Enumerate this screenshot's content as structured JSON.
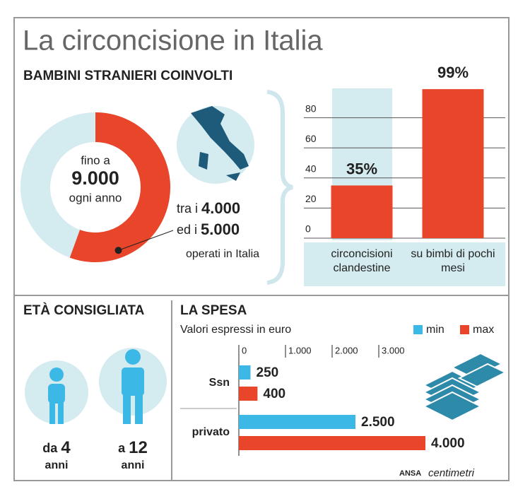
{
  "title": "La circoncisione in Italia",
  "chart_data": [
    {
      "type": "donut",
      "title": "BAMBINI STRANIERI COINVOLTI",
      "total": 9000,
      "total_label": "9.000",
      "total_prefix": "fino a",
      "total_suffix": "ogni anno",
      "range": [
        4000,
        5000
      ],
      "range_labels": [
        "4.000",
        "5.000"
      ],
      "range_prefixes": [
        "tra i",
        "ed i"
      ],
      "note": "operati in Italia",
      "colors": [
        "#e8452a",
        "#d4ebf0"
      ]
    },
    {
      "type": "bar",
      "categories": [
        "circoncisioni clandestine",
        "su bimbi di pochi mesi"
      ],
      "values": [
        35,
        99
      ],
      "value_labels": [
        "35%",
        "99%"
      ],
      "color": "#e8452a",
      "ylim": [
        0,
        100
      ],
      "yticks": [
        0,
        20,
        40,
        60,
        80
      ],
      "grid": true
    },
    {
      "type": "hbar",
      "title": "LA SPESA",
      "subtitle": "Valori espressi in euro",
      "categories": [
        "Ssn",
        "privato"
      ],
      "series": [
        {
          "name": "min",
          "color": "#3cb8e6",
          "values": [
            250,
            2500
          ],
          "value_labels": [
            "250",
            "2.500"
          ]
        },
        {
          "name": "max",
          "color": "#e8452a",
          "values": [
            400,
            4000
          ],
          "value_labels": [
            "400",
            "4.000"
          ]
        }
      ],
      "xlim": [
        0,
        4000
      ],
      "xticks": [
        0,
        {
          "value": 1000,
          "label": "1.000"
        },
        {
          "value": 2000,
          "label": "2.000"
        },
        {
          "value": 3000,
          "label": "3.000"
        }
      ],
      "legend": "top-right"
    }
  ],
  "age": {
    "title": "ETÀ CONSIGLIATA",
    "items": [
      {
        "prefix": "da",
        "value": 4,
        "unit": "anni"
      },
      {
        "prefix": "a",
        "value": 12,
        "unit": "anni"
      }
    ]
  },
  "source": {
    "agency": "ANSA",
    "brand": "centimetri"
  }
}
